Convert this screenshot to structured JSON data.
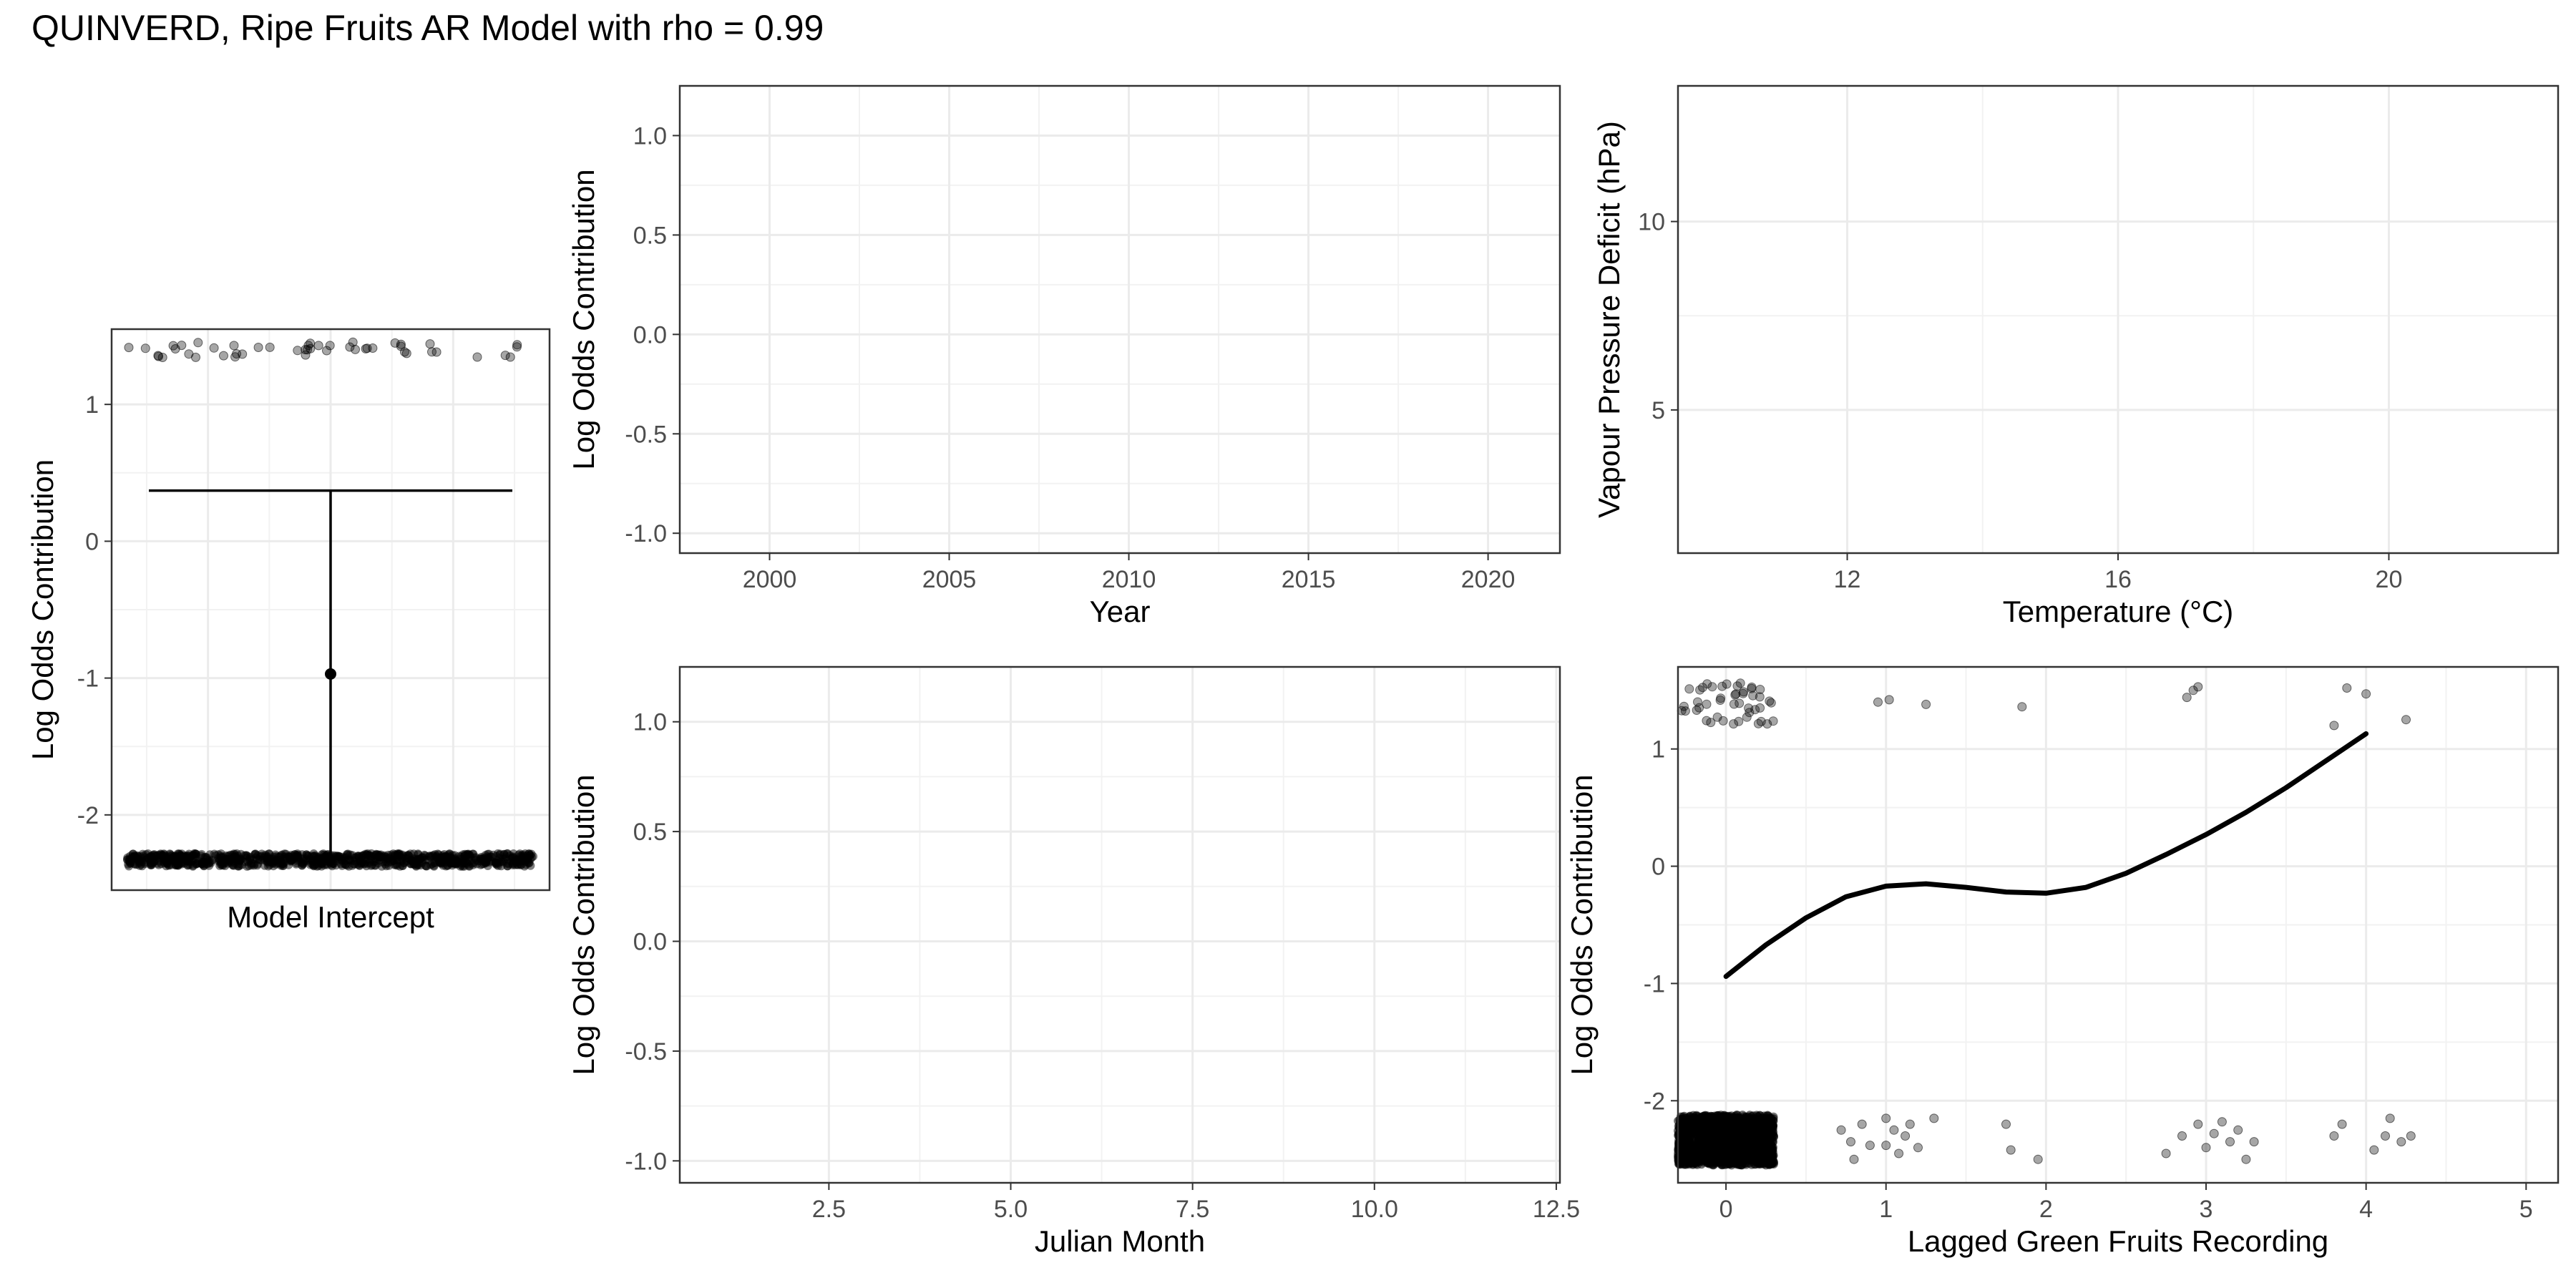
{
  "title": "QUINVERD, Ripe Fruits AR Model with rho = 0.99",
  "chart_data": [
    {
      "id": "intercept",
      "type": "scatter",
      "xlabel": "Model Intercept",
      "ylabel": "Log Odds Contribution",
      "ylim": [
        -2.55,
        1.55
      ],
      "yticks": [
        1,
        0,
        -1,
        -2
      ],
      "ytick_labels": [
        "1",
        "0",
        "-1",
        "-2"
      ],
      "xtick_labels": [],
      "grid": true,
      "estimate": {
        "y": -0.97,
        "ci_low": -2.3,
        "ci_high": 0.37
      },
      "points": {
        "upper_y": 1.4,
        "lower_y": -2.33,
        "upper_count": 48
      }
    },
    {
      "id": "year",
      "type": "scatter",
      "xlabel": "Year",
      "ylabel": "Log Odds Contribution",
      "xlim": [
        1997.5,
        2022
      ],
      "ylim": [
        -1.1,
        1.25
      ],
      "xticks": [
        2000,
        2005,
        2010,
        2015,
        2020
      ],
      "xtick_labels": [
        "2000",
        "2005",
        "2010",
        "2015",
        "2020"
      ],
      "yticks": [
        1.0,
        0.5,
        0.0,
        -0.5,
        -1.0
      ],
      "ytick_labels": [
        "1.0",
        "0.5",
        "0.0",
        "-0.5",
        "-1.0"
      ],
      "grid": true,
      "series": []
    },
    {
      "id": "temperature",
      "type": "scatter",
      "xlabel": "Temperature (°C)",
      "ylabel": "Vapour Pressure Deficit (hPa)",
      "xlim": [
        9.5,
        22.5
      ],
      "ylim": [
        1.2,
        13.6
      ],
      "xticks": [
        12,
        16,
        20
      ],
      "xtick_labels": [
        "12",
        "16",
        "20"
      ],
      "yticks": [
        10,
        5
      ],
      "ytick_labels": [
        "10",
        "5"
      ],
      "grid": true,
      "series": []
    },
    {
      "id": "julian",
      "type": "scatter",
      "xlabel": "Julian Month",
      "ylabel": "Log Odds Contribution",
      "xlim": [
        0.45,
        12.55
      ],
      "ylim": [
        -1.1,
        1.25
      ],
      "xticks": [
        2.5,
        5.0,
        7.5,
        10.0,
        12.5
      ],
      "xtick_labels": [
        "2.5",
        "5.0",
        "7.5",
        "10.0",
        "12.5"
      ],
      "yticks": [
        1.0,
        0.5,
        0.0,
        -0.5,
        -1.0
      ],
      "ytick_labels": [
        "1.0",
        "0.5",
        "0.0",
        "-0.5",
        "-1.0"
      ],
      "grid": true,
      "series": []
    },
    {
      "id": "lagged",
      "type": "line",
      "xlabel": "Lagged Green Fruits Recording",
      "ylabel": "Log Odds Contribution",
      "xlim": [
        -0.3,
        5.2
      ],
      "ylim": [
        -2.7,
        1.7
      ],
      "xticks": [
        0,
        1,
        2,
        3,
        4,
        5
      ],
      "xtick_labels": [
        "0",
        "1",
        "2",
        "3",
        "4",
        "5"
      ],
      "yticks": [
        1,
        0,
        -1,
        -2
      ],
      "ytick_labels": [
        "1",
        "0",
        "-1",
        "-2"
      ],
      "grid": true,
      "curve": {
        "x": [
          0,
          0.25,
          0.5,
          0.75,
          1.0,
          1.25,
          1.5,
          1.75,
          2.0,
          2.25,
          2.5,
          2.75,
          3.0,
          3.25,
          3.5,
          3.75,
          4.0
        ],
        "y": [
          -0.94,
          -0.67,
          -0.44,
          -0.26,
          -0.17,
          -0.15,
          -0.18,
          -0.22,
          -0.23,
          -0.18,
          -0.06,
          0.1,
          0.27,
          0.46,
          0.67,
          0.9,
          1.13
        ]
      },
      "points": {
        "upper": [
          {
            "x": 0.95,
            "y": 1.4
          },
          {
            "x": 1.02,
            "y": 1.42
          },
          {
            "x": 1.25,
            "y": 1.38
          },
          {
            "x": 1.85,
            "y": 1.36
          },
          {
            "x": 2.88,
            "y": 1.44
          },
          {
            "x": 2.92,
            "y": 1.5
          },
          {
            "x": 2.95,
            "y": 1.53
          },
          {
            "x": 3.8,
            "y": 1.2
          },
          {
            "x": 3.88,
            "y": 1.52
          },
          {
            "x": 4.0,
            "y": 1.47
          },
          {
            "x": 4.25,
            "y": 1.25
          }
        ],
        "lower": [
          {
            "x": 0.72,
            "y": -2.25
          },
          {
            "x": 0.78,
            "y": -2.35
          },
          {
            "x": 0.8,
            "y": -2.5
          },
          {
            "x": 0.85,
            "y": -2.2
          },
          {
            "x": 0.9,
            "y": -2.38
          },
          {
            "x": 1.0,
            "y": -2.15
          },
          {
            "x": 1.0,
            "y": -2.38
          },
          {
            "x": 1.05,
            "y": -2.25
          },
          {
            "x": 1.08,
            "y": -2.45
          },
          {
            "x": 1.12,
            "y": -2.3
          },
          {
            "x": 1.15,
            "y": -2.2
          },
          {
            "x": 1.2,
            "y": -2.4
          },
          {
            "x": 1.3,
            "y": -2.15
          },
          {
            "x": 1.75,
            "y": -2.2
          },
          {
            "x": 1.78,
            "y": -2.42
          },
          {
            "x": 1.95,
            "y": -2.5
          },
          {
            "x": 2.75,
            "y": -2.45
          },
          {
            "x": 2.85,
            "y": -2.3
          },
          {
            "x": 2.95,
            "y": -2.2
          },
          {
            "x": 3.0,
            "y": -2.4
          },
          {
            "x": 3.05,
            "y": -2.28
          },
          {
            "x": 3.1,
            "y": -2.18
          },
          {
            "x": 3.15,
            "y": -2.35
          },
          {
            "x": 3.2,
            "y": -2.25
          },
          {
            "x": 3.25,
            "y": -2.5
          },
          {
            "x": 3.3,
            "y": -2.35
          },
          {
            "x": 3.8,
            "y": -2.3
          },
          {
            "x": 3.85,
            "y": -2.2
          },
          {
            "x": 4.05,
            "y": -2.42
          },
          {
            "x": 4.12,
            "y": -2.3
          },
          {
            "x": 4.15,
            "y": -2.15
          },
          {
            "x": 4.22,
            "y": -2.35
          },
          {
            "x": 4.28,
            "y": -2.3
          }
        ],
        "cluster_at_zero": {
          "x_range": [
            -0.3,
            0.3
          ],
          "upper_y_range": [
            1.2,
            1.6
          ],
          "lower_y_range": [
            -2.55,
            -2.12
          ]
        }
      }
    }
  ]
}
